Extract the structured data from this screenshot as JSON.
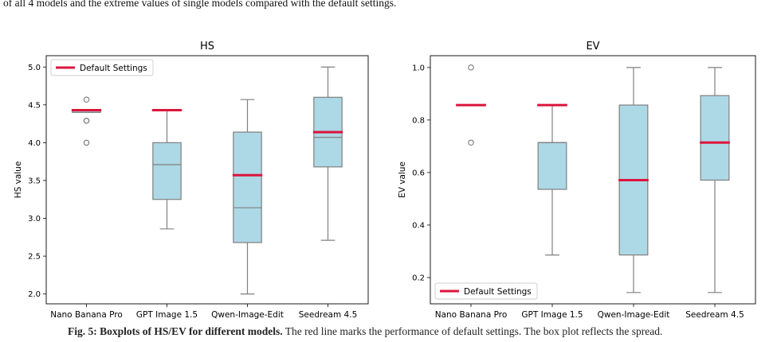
{
  "caption": {
    "top_line": "of all 4 models and the extreme values of single models compared with the default settings.",
    "bottom_label": "Fig. 5: Boxplots of HS/EV for different models.",
    "bottom_rest": "The red line marks the performance of default settings. The box plot reflects the spread."
  },
  "chart_data": [
    {
      "type": "box",
      "title": "HS",
      "xlabel": "",
      "ylabel": "HS value",
      "ylim": [
        1.87,
        5.15
      ],
      "yticks": [
        2.0,
        2.5,
        3.0,
        3.5,
        4.0,
        4.5,
        5.0
      ],
      "ytick_labels": [
        "2.0",
        "2.5",
        "3.0",
        "3.5",
        "4.0",
        "4.5",
        "5.0"
      ],
      "legend": {
        "label": "Default Settings",
        "placement": "upper left"
      },
      "categories": [
        "Nano Banana Pro",
        "GPT Image 1.5",
        "Qwen-Image-Edit",
        "Seedream 4.5"
      ],
      "boxes": [
        {
          "whisker_low": 4.4,
          "q1": 4.4,
          "median": 4.4,
          "q3": 4.43,
          "whisker_high": 4.43,
          "outliers": [
            4.57,
            4.29,
            4.29,
            4.0
          ],
          "default": 4.43
        },
        {
          "whisker_low": 2.86,
          "q1": 3.25,
          "median": 3.71,
          "q3": 4.0,
          "whisker_high": 4.43,
          "outliers": [],
          "default": 4.43
        },
        {
          "whisker_low": 2.0,
          "q1": 2.68,
          "median": 3.14,
          "q3": 4.14,
          "whisker_high": 4.57,
          "outliers": [],
          "default": 3.57
        },
        {
          "whisker_low": 2.71,
          "q1": 3.68,
          "median": 4.07,
          "q3": 4.6,
          "whisker_high": 5.0,
          "outliers": [],
          "default": 4.14
        }
      ],
      "colors": {
        "box_fill": "#add8e6",
        "box_edge": "#808080",
        "default_line": "#dc143c"
      }
    },
    {
      "type": "box",
      "title": "EV",
      "xlabel": "",
      "ylabel": "EV value",
      "ylim": [
        0.1,
        1.045
      ],
      "yticks": [
        0.2,
        0.4,
        0.6,
        0.8,
        1.0
      ],
      "ytick_labels": [
        "0.2",
        "0.4",
        "0.6",
        "0.8",
        "1.0"
      ],
      "legend": {
        "label": "Default Settings",
        "placement": "lower left"
      },
      "categories": [
        "Nano Banana Pro",
        "GPT Image 1.5",
        "Qwen-Image-Edit",
        "Seedream 4.5"
      ],
      "boxes": [
        {
          "whisker_low": 0.857,
          "q1": 0.857,
          "median": 0.857,
          "q3": 0.857,
          "whisker_high": 0.857,
          "outliers": [
            1.0,
            0.714
          ],
          "default": 0.857
        },
        {
          "whisker_low": 0.286,
          "q1": 0.536,
          "median": 0.714,
          "q3": 0.714,
          "whisker_high": 0.857,
          "outliers": [],
          "default": 0.857
        },
        {
          "whisker_low": 0.143,
          "q1": 0.286,
          "median": 0.571,
          "q3": 0.857,
          "whisker_high": 1.0,
          "outliers": [],
          "default": 0.571
        },
        {
          "whisker_low": 0.143,
          "q1": 0.571,
          "median": 0.714,
          "q3": 0.893,
          "whisker_high": 1.0,
          "outliers": [],
          "default": 0.714
        }
      ],
      "colors": {
        "box_fill": "#add8e6",
        "box_edge": "#808080",
        "default_line": "#dc143c"
      }
    }
  ]
}
